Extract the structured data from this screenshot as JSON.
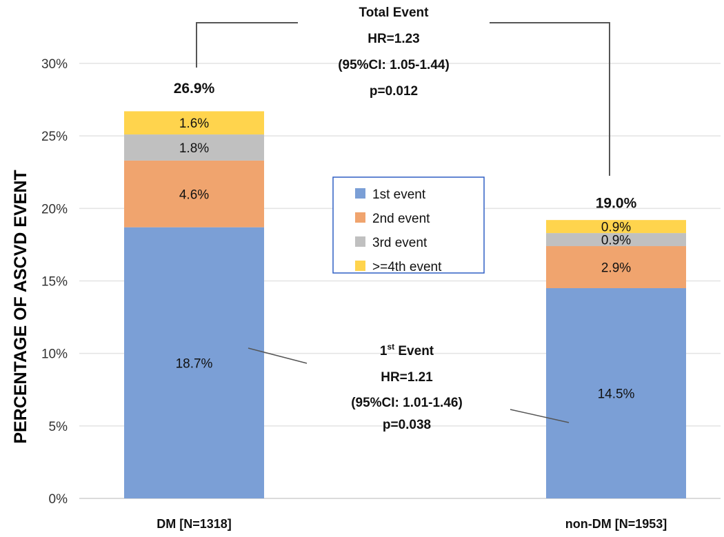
{
  "chart_data": {
    "type": "bar",
    "stacked": true,
    "title": "",
    "xlabel": "",
    "ylabel": "PERCENTAGE OF ASCVD EVENT",
    "ylim": [
      0,
      30
    ],
    "yticks": [
      "0%",
      "5%",
      "10%",
      "15%",
      "20%",
      "25%",
      "30%"
    ],
    "ytick_values": [
      0,
      5,
      10,
      15,
      20,
      25,
      30
    ],
    "grid": true,
    "categories": [
      "DM [N=1318]",
      "non-DM [N=1953]"
    ],
    "totals": [
      26.9,
      19.0
    ],
    "total_labels": [
      "26.9%",
      "19.0%"
    ],
    "series": [
      {
        "name": "1st event",
        "color": "#7b9fd6",
        "values": [
          18.7,
          14.5
        ],
        "labels": [
          "18.7%",
          "14.5%"
        ]
      },
      {
        "name": "2nd event",
        "color": "#f0a46e",
        "values": [
          4.6,
          2.9
        ],
        "labels": [
          "4.6%",
          "2.9%"
        ]
      },
      {
        "name": "3rd event",
        "color": "#c0c0c0",
        "values": [
          1.8,
          0.9
        ],
        "labels": [
          "1.8%",
          "0.9%"
        ]
      },
      {
        "name": ">=4th event",
        "color": "#ffd44d",
        "values": [
          1.6,
          0.9
        ],
        "labels": [
          "1.6%",
          "0.9%"
        ]
      }
    ],
    "legend_placement": "center",
    "legend_border_color": "#2f5fc4",
    "annotations": {
      "total": {
        "title": "Total Event",
        "hr": "HR=1.23",
        "ci": "(95%CI: 1.05-1.44)",
        "p": "p=0.012"
      },
      "first": {
        "title_num": "1",
        "title_sup": "st",
        "title_rest": " Event",
        "hr": "HR=1.21",
        "ci": "(95%CI: 1.01-1.46)",
        "p": "p=0.038"
      }
    }
  }
}
